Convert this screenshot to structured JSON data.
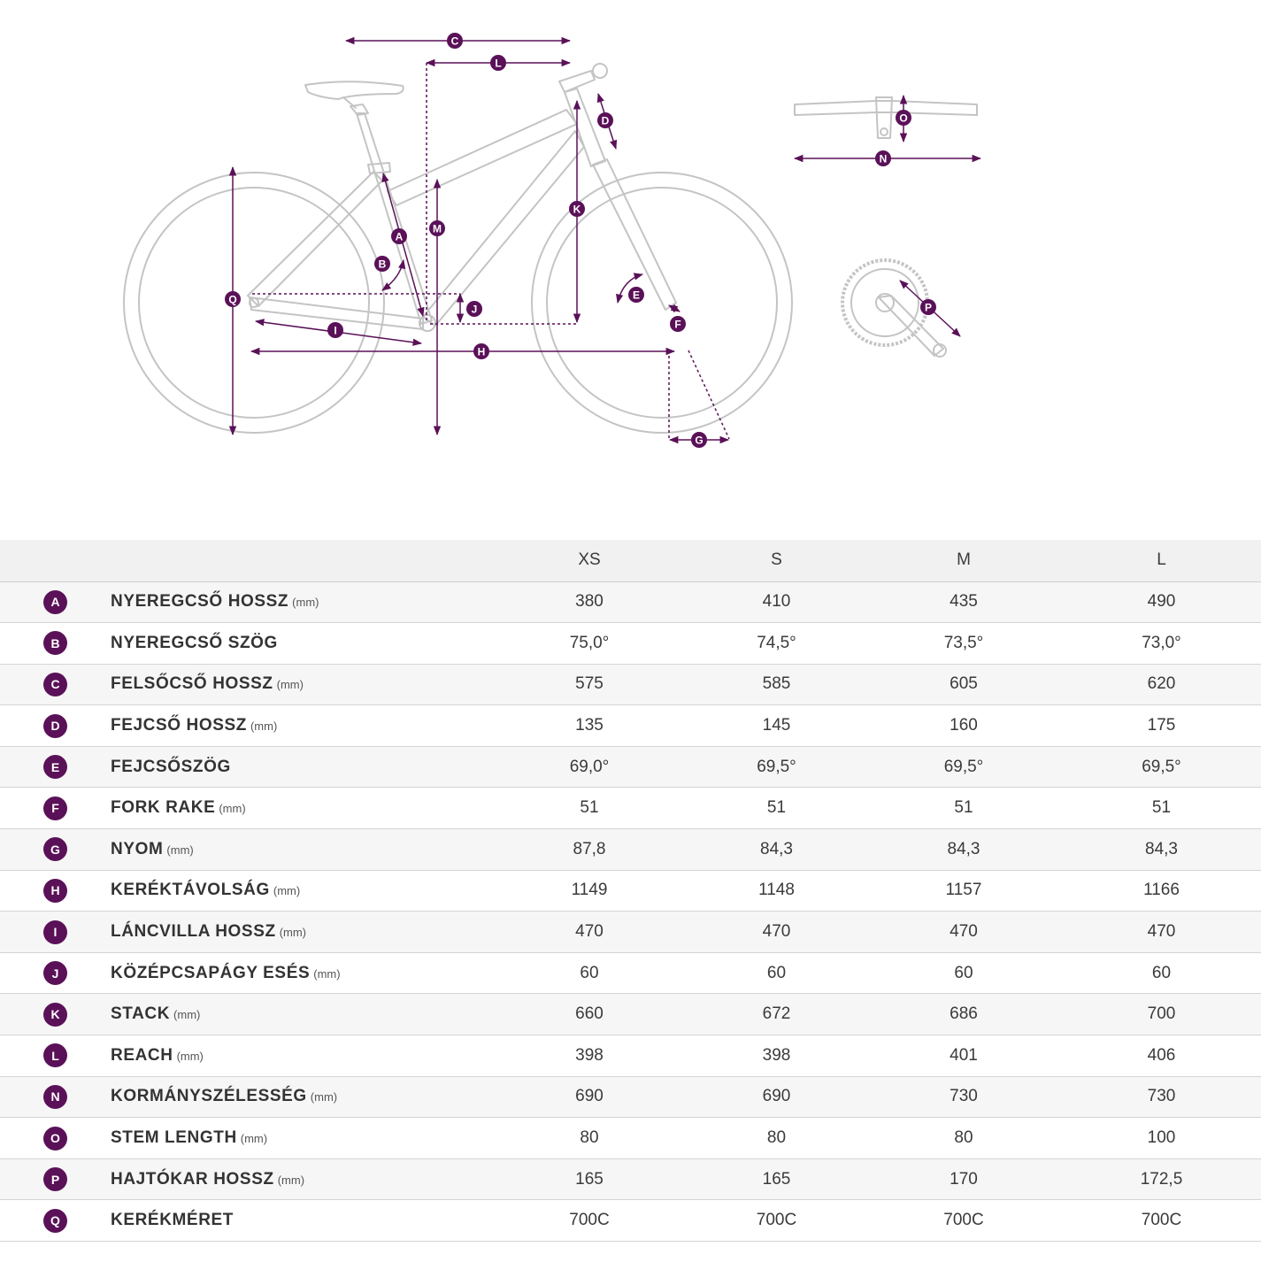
{
  "diagram": {
    "markers": [
      "A",
      "B",
      "C",
      "D",
      "E",
      "F",
      "G",
      "H",
      "I",
      "J",
      "K",
      "L",
      "M",
      "N",
      "O",
      "P",
      "Q"
    ],
    "accent_color": "#5a1158",
    "frame_color": "#c9c9c9"
  },
  "table": {
    "columns": [
      "XS",
      "S",
      "M",
      "L"
    ],
    "rows": [
      {
        "letter": "A",
        "name": "NYEREGCSŐ HOSSZ",
        "unit": "(mm)",
        "values": [
          "380",
          "410",
          "435",
          "490"
        ]
      },
      {
        "letter": "B",
        "name": "NYEREGCSŐ SZÖG",
        "unit": "",
        "values": [
          "75,0°",
          "74,5°",
          "73,5°",
          "73,0°"
        ]
      },
      {
        "letter": "C",
        "name": "FELSŐCSŐ HOSSZ",
        "unit": "(mm)",
        "values": [
          "575",
          "585",
          "605",
          "620"
        ]
      },
      {
        "letter": "D",
        "name": "FEJCSŐ HOSSZ",
        "unit": "(mm)",
        "values": [
          "135",
          "145",
          "160",
          "175"
        ]
      },
      {
        "letter": "E",
        "name": "FEJCSŐSZÖG",
        "unit": "",
        "values": [
          "69,0°",
          "69,5°",
          "69,5°",
          "69,5°"
        ]
      },
      {
        "letter": "F",
        "name": "FORK RAKE",
        "unit": "(mm)",
        "values": [
          "51",
          "51",
          "51",
          "51"
        ]
      },
      {
        "letter": "G",
        "name": "NYOM",
        "unit": "(mm)",
        "values": [
          "87,8",
          "84,3",
          "84,3",
          "84,3"
        ]
      },
      {
        "letter": "H",
        "name": "KERÉKTÁVOLSÁG",
        "unit": "(mm)",
        "values": [
          "1149",
          "1148",
          "1157",
          "1166"
        ]
      },
      {
        "letter": "I",
        "name": "LÁNCVILLA HOSSZ",
        "unit": "(mm)",
        "values": [
          "470",
          "470",
          "470",
          "470"
        ]
      },
      {
        "letter": "J",
        "name": "KÖZÉPCSAPÁGY ESÉS",
        "unit": "(mm)",
        "values": [
          "60",
          "60",
          "60",
          "60"
        ]
      },
      {
        "letter": "K",
        "name": "STACK",
        "unit": "(mm)",
        "values": [
          "660",
          "672",
          "686",
          "700"
        ]
      },
      {
        "letter": "L",
        "name": "REACH",
        "unit": "(mm)",
        "values": [
          "398",
          "398",
          "401",
          "406"
        ]
      },
      {
        "letter": "N",
        "name": "KORMÁNYSZÉLESSÉG",
        "unit": "(mm)",
        "values": [
          "690",
          "690",
          "730",
          "730"
        ]
      },
      {
        "letter": "O",
        "name": "STEM LENGTH",
        "unit": "(mm)",
        "values": [
          "80",
          "80",
          "80",
          "100"
        ]
      },
      {
        "letter": "P",
        "name": "HAJTÓKAR HOSSZ",
        "unit": "(mm)",
        "values": [
          "165",
          "165",
          "170",
          "172,5"
        ]
      },
      {
        "letter": "Q",
        "name": "KERÉKMÉRET",
        "unit": "",
        "values": [
          "700C",
          "700C",
          "700C",
          "700C"
        ]
      }
    ]
  }
}
